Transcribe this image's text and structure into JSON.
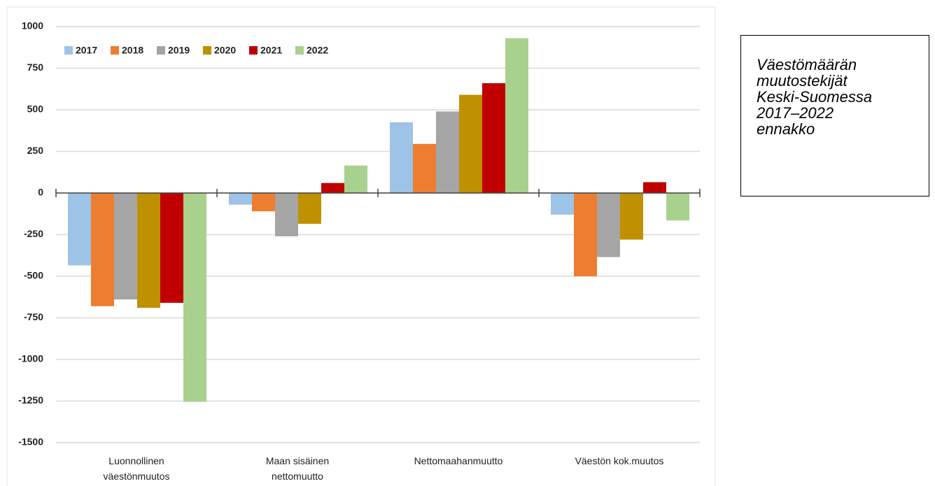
{
  "chart_data": {
    "type": "bar",
    "title": "Väestömäärän muutostekijät Keski-Suomessa 2017–2022 ennakko",
    "categories": [
      "Luonnollinen väestönmuutos",
      "Maan sisäinen nettomuutto",
      "Nettomaahanmuutto",
      "Väestön kok.muutos"
    ],
    "series": [
      {
        "name": "2017",
        "color": "#9dc3e6",
        "values": [
          -435,
          -70,
          425,
          -130
        ]
      },
      {
        "name": "2018",
        "color": "#ed7d31",
        "values": [
          -680,
          -110,
          295,
          -500
        ]
      },
      {
        "name": "2019",
        "color": "#a5a5a5",
        "values": [
          -640,
          -260,
          490,
          -385
        ]
      },
      {
        "name": "2020",
        "color": "#bf9000",
        "values": [
          -690,
          -185,
          590,
          -280
        ]
      },
      {
        "name": "2021",
        "color": "#c00000",
        "values": [
          -660,
          60,
          660,
          65
        ]
      },
      {
        "name": "2022",
        "color": "#a9d18e",
        "values": [
          -1255,
          165,
          930,
          -165
        ]
      }
    ],
    "ylim": [
      -1500,
      1000
    ],
    "yticks": [
      -1500,
      -1250,
      -1000,
      -750,
      -500,
      -250,
      0,
      250,
      500,
      750,
      1000
    ],
    "grid": true,
    "legend": "top-left"
  }
}
